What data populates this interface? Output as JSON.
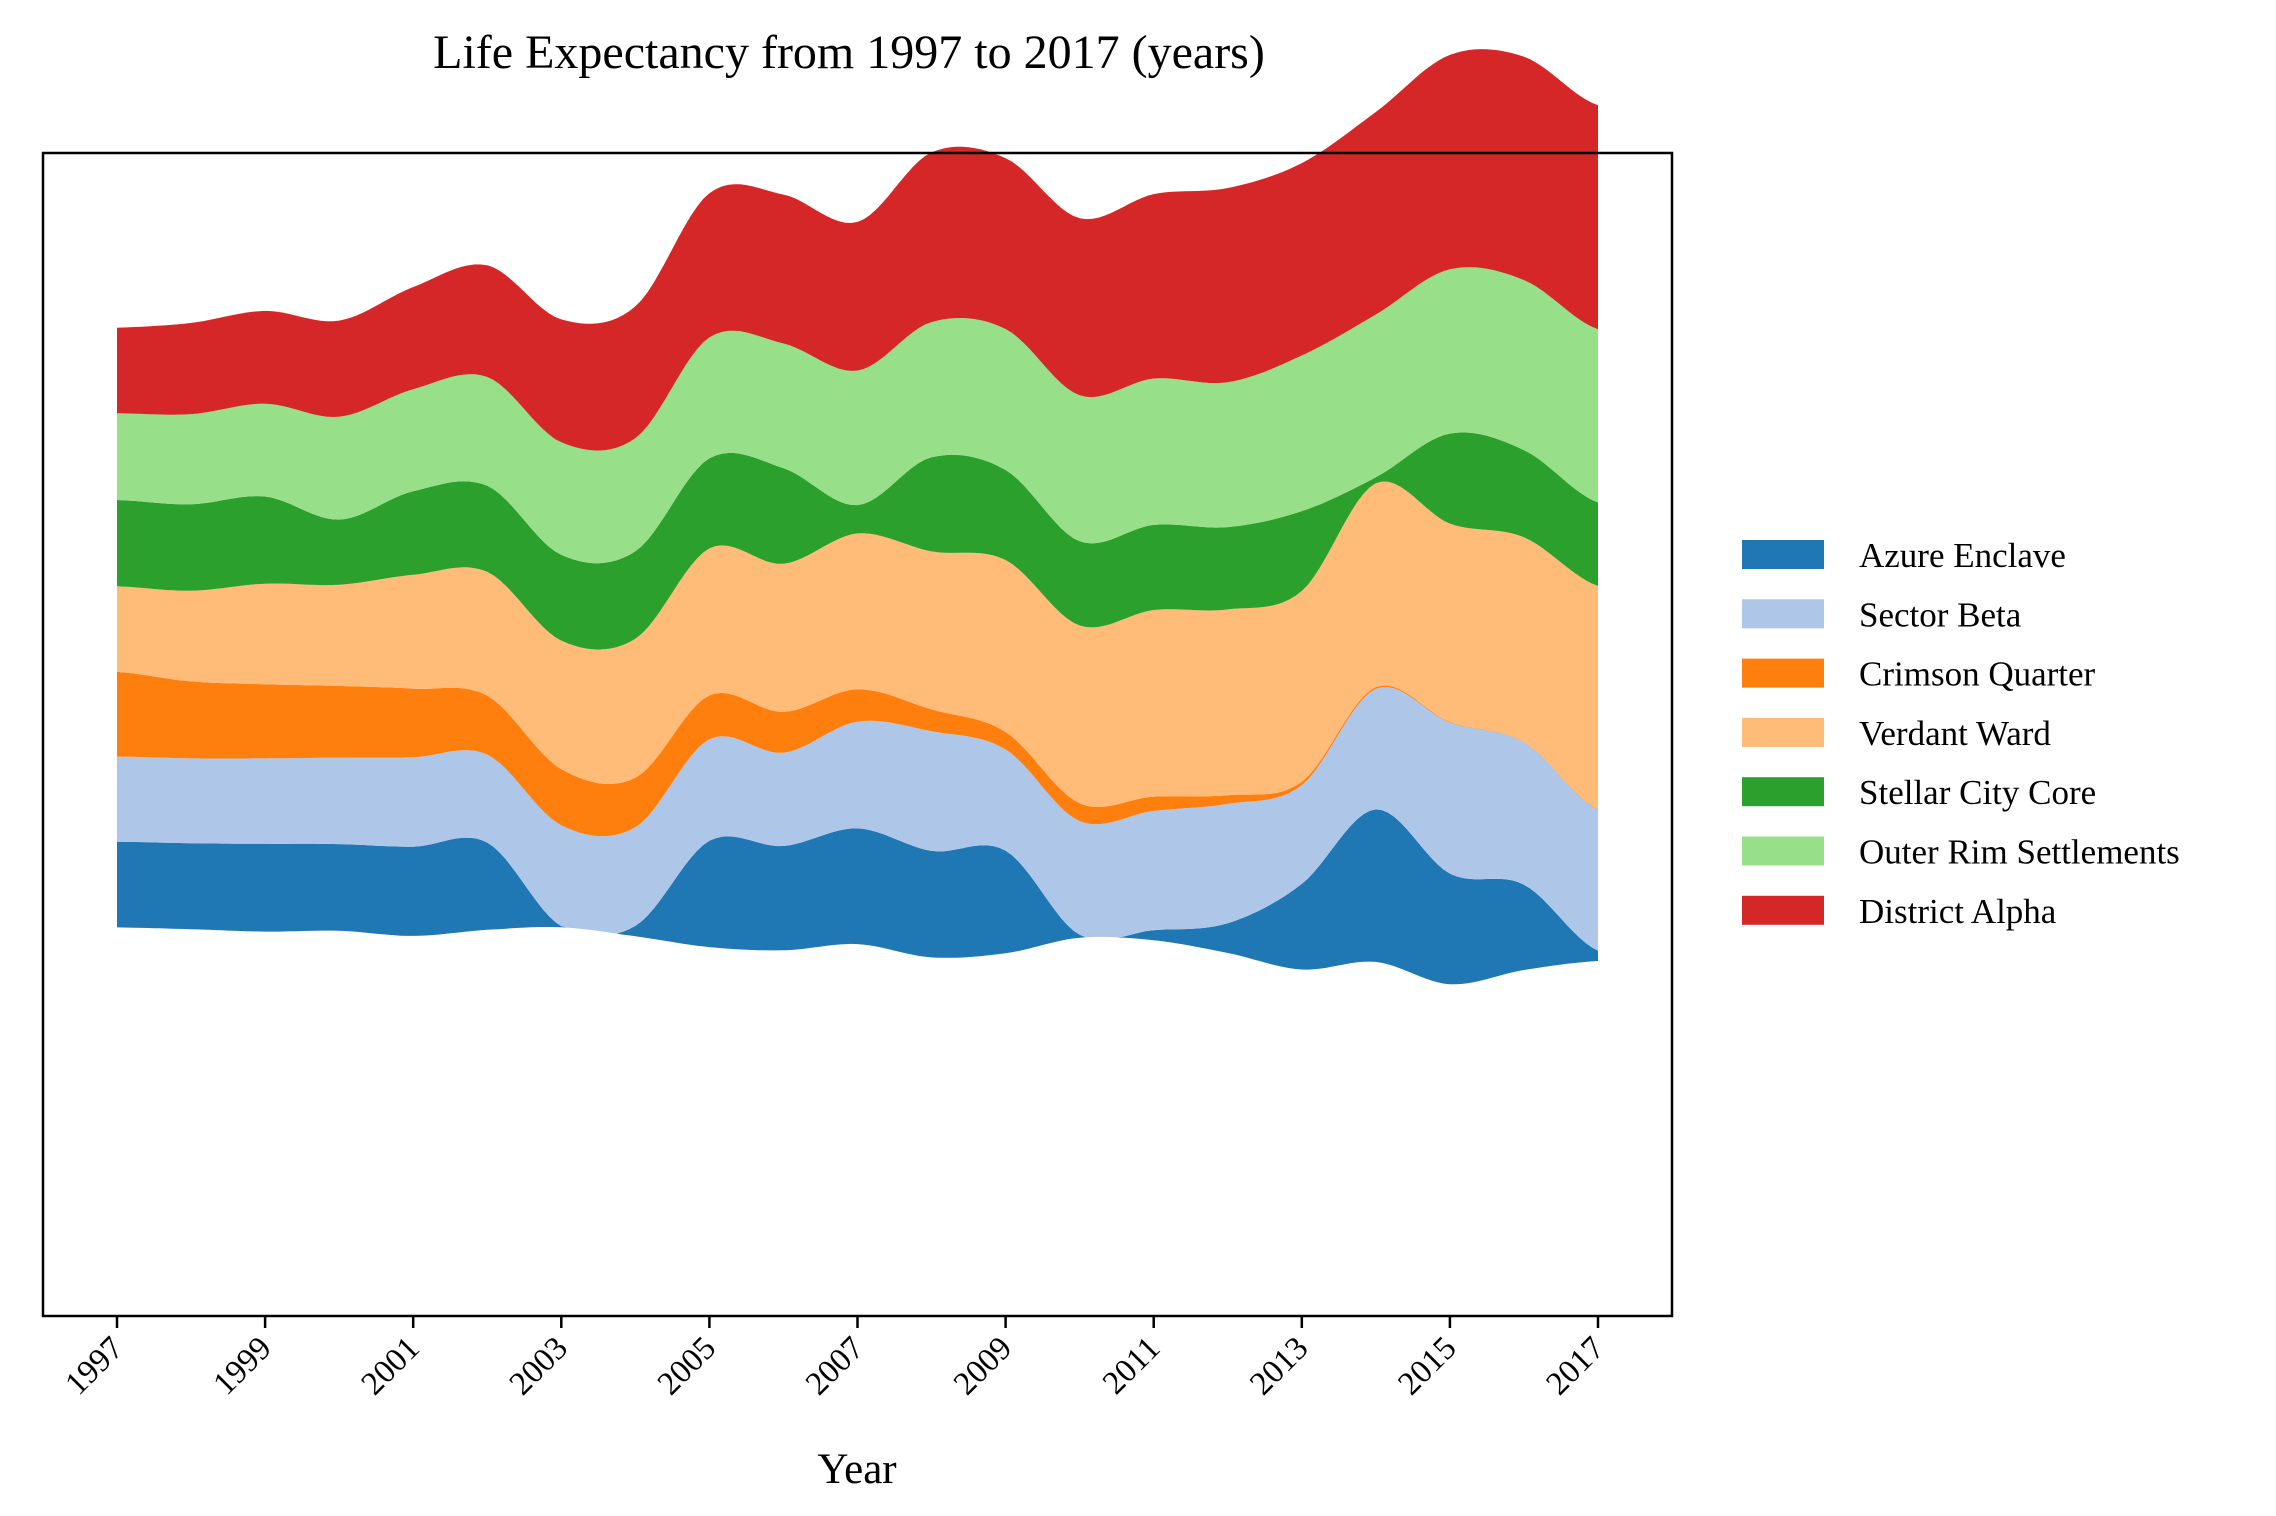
{
  "chart_data": {
    "type": "streamgraph",
    "title": "Life Expectancy from 1997 to 2017 (years)",
    "xlabel": "Year",
    "ylabel": "",
    "x": [
      1997,
      1998,
      1999,
      2000,
      2001,
      2002,
      2003,
      2004,
      2005,
      2006,
      2007,
      2008,
      2009,
      2010,
      2011,
      2012,
      2013,
      2014,
      2015,
      2016,
      2017
    ],
    "xticks": [
      "1997",
      "1999",
      "2001",
      "2003",
      "2005",
      "2007",
      "2009",
      "2011",
      "2013",
      "2015",
      "2017"
    ],
    "baseline": [
      -35.9,
      -37.4,
      -39.4,
      -38.7,
      -43.0,
      -37.9,
      -35.8,
      -43.3,
      -52.3,
      -55.0,
      -49.8,
      -60.9,
      -57.4,
      -44.5,
      -46.6,
      -57.2,
      -71.0,
      -64.7,
      -83.3,
      -71.4,
      -63.9
    ],
    "series": [
      {
        "name": "Azure Enclave",
        "color": "#1f77b4",
        "values": [
          71.5,
          71.7,
          73.2,
          72.3,
          74.4,
          72.7,
          0.9,
          8.7,
          88.6,
          87.0,
          96.5,
          88.8,
          85.5,
          2.4,
          8.4,
          24.8,
          71.4,
          127.2,
          92.3,
          71.1,
          8.5
        ]
      },
      {
        "name": "Sector Beta",
        "color": "#aec7e8",
        "values": [
          71.0,
          70.8,
          71.3,
          72.1,
          74.6,
          73.4,
          84.2,
          82.3,
          84.7,
          77.8,
          89.0,
          99.8,
          84.4,
          94.9,
          99.5,
          99.5,
          82.4,
          100.6,
          125.9,
          118.7,
          117.6
        ]
      },
      {
        "name": "Crimson Quarter",
        "color": "#ff7f0e",
        "values": [
          70.6,
          64.2,
          61.8,
          59.8,
          57.2,
          49.1,
          46.8,
          41.2,
          36.6,
          34.0,
          27.0,
          18.2,
          14.6,
          14.8,
          11.9,
          7.3,
          2.8,
          1.4,
          0.5,
          0.3,
          0.4
        ]
      },
      {
        "name": "Verdant Ward",
        "color": "#ffbb78",
        "values": [
          71.4,
          75.6,
          83.9,
          84.4,
          95.0,
          103.3,
          107.2,
          116.0,
          122.6,
          123.6,
          130.0,
          131.8,
          143.4,
          148.3,
          155.6,
          154.9,
          159.1,
          170.0,
          165.5,
          170.8,
          186.3
        ]
      },
      {
        "name": "Stellar City Core",
        "color": "#2ca02c",
        "values": [
          72.0,
          72.1,
          72.7,
          54.3,
          69.7,
          71.8,
          71.5,
          72.9,
          75.1,
          79.7,
          23.6,
          78.5,
          75.1,
          70.3,
          71.0,
          68.7,
          66.6,
          5.0,
          75.1,
          72.7,
          69.6
        ]
      },
      {
        "name": "Outer Rim Settlements",
        "color": "#98df8a",
        "values": [
          72.3,
          75.2,
          77.4,
          85.8,
          85.1,
          90.8,
          93.9,
          94.4,
          100.9,
          104.0,
          112.2,
          112.8,
          117.6,
          121.7,
          122.1,
          120.8,
          129.8,
          135.8,
          137.0,
          141.8,
          144.5
        ]
      },
      {
        "name": "District Alpha",
        "color": "#d62728",
        "values": [
          71.4,
          76.1,
          77.4,
          80.2,
          85.2,
          93.1,
          102.5,
          109.9,
          120.3,
          124.2,
          124.0,
          141.5,
          142.5,
          147.7,
          153.8,
          162.0,
          160.5,
          168.9,
          178.8,
          186.3,
          186.8
        ]
      }
    ],
    "ylim": [
      -360.0,
      610.0
    ],
    "legend": "right",
    "grid": false
  }
}
